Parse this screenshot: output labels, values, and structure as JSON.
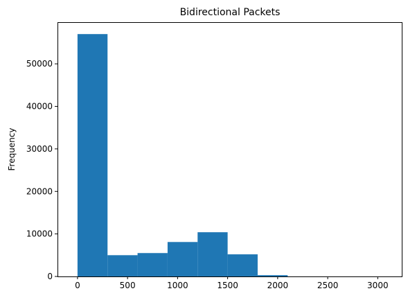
{
  "chart_data": {
    "type": "bar",
    "title": "Bidirectional Packets",
    "xlabel": "",
    "ylabel": "Frequency",
    "xlim": [
      -200,
      3240
    ],
    "ylim": [
      0,
      59800
    ],
    "bin_edges": [
      0,
      300,
      600,
      900,
      1200,
      1500,
      1800,
      2100,
      2400,
      2700,
      3000
    ],
    "values": [
      57000,
      5000,
      5500,
      8100,
      10400,
      5200,
      300,
      0,
      0,
      0
    ],
    "x_ticks": [
      0,
      500,
      1000,
      1500,
      2000,
      2500,
      3000
    ],
    "x_tick_labels": [
      "0",
      "500",
      "1000",
      "1500",
      "2000",
      "2500",
      "3000"
    ],
    "y_ticks": [
      0,
      10000,
      20000,
      30000,
      40000,
      50000
    ],
    "y_tick_labels": [
      "0",
      "10000",
      "20000",
      "30000",
      "40000",
      "50000"
    ],
    "bar_color": "#1f77b4",
    "grid": false,
    "legend": false
  }
}
